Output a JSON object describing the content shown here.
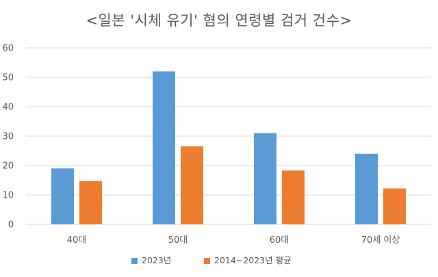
{
  "chart_data": {
    "type": "bar",
    "title": "<일본 '시체 유기' 혐의 연령별 검거 건수>",
    "categories": [
      "40대",
      "50대",
      "60대",
      "70세 이상"
    ],
    "series": [
      {
        "name": "2023년",
        "values": [
          19,
          52,
          31,
          24
        ],
        "color": "#5B9BD5"
      },
      {
        "name": "2014~2023년 평균",
        "values": [
          14.7,
          26.5,
          18.3,
          12.2
        ],
        "color": "#ED7D31"
      }
    ],
    "xlabel": "",
    "ylabel": "",
    "ylim": [
      0,
      60
    ],
    "yticks": [
      0,
      10,
      20,
      30,
      40,
      50,
      60
    ],
    "grid": true,
    "legend_position": "bottom"
  }
}
